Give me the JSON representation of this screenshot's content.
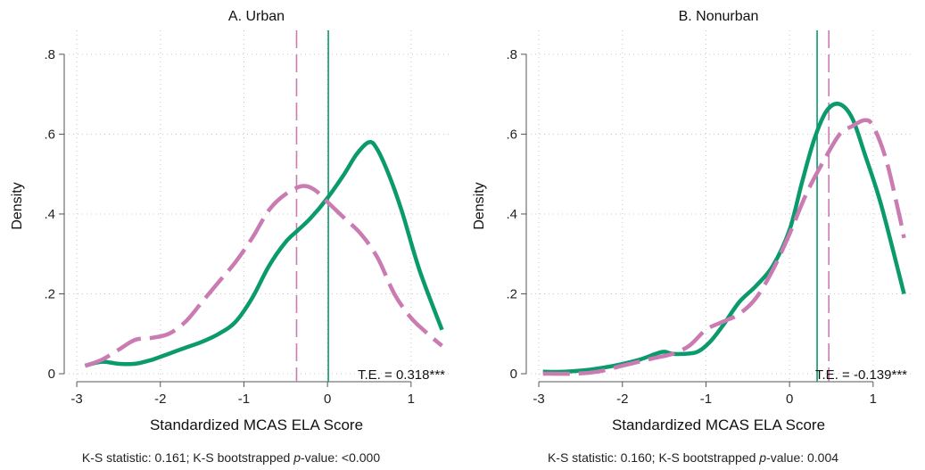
{
  "panels": [
    {
      "panel_title": "A. Urban",
      "ylabel": "Density",
      "xlabel": "Standardized MCAS ELA Score",
      "te_label": "T.E. = 0.318***",
      "ks": {
        "prefix": "K-S statistic: 0.161; K-S bootstrapped ",
        "pword": "p",
        "suffix": "-value: <0.000"
      }
    },
    {
      "panel_title": "B. Nonurban",
      "ylabel": "Density",
      "xlabel": "Standardized MCAS ELA Score",
      "te_label": "T.E. = -0.139***",
      "ks": {
        "prefix": "K-S statistic: 0.160; K-S bootstrapped ",
        "pword": "p",
        "suffix": "-value: 0.004"
      }
    }
  ],
  "colors": {
    "solid": "#0a9a6c",
    "dashed": "#c97bb2",
    "axis": "#555555",
    "grid": "#c8c8c8"
  },
  "chart_data": [
    {
      "type": "line",
      "title": "A. Urban",
      "xlabel": "Standardized MCAS ELA Score",
      "ylabel": "Density",
      "xlim": [
        -3.15,
        1.45
      ],
      "ylim": [
        -0.02,
        0.86
      ],
      "x_ticks": [
        -3,
        -2,
        -1,
        0,
        1
      ],
      "x_tick_labels": [
        "-3",
        "-2",
        "-1",
        "0",
        "1"
      ],
      "y_ticks": [
        0,
        0.2,
        0.4,
        0.6,
        0.8
      ],
      "y_tick_labels": [
        "0",
        ".2",
        ".4",
        ".6",
        ".8"
      ],
      "grid": true,
      "series": [
        {
          "style": "solid",
          "color": "#0a9a6c",
          "x": [
            -2.9,
            -2.7,
            -2.5,
            -2.3,
            -2.1,
            -1.9,
            -1.7,
            -1.5,
            -1.3,
            -1.1,
            -0.9,
            -0.7,
            -0.5,
            -0.35,
            -0.2,
            0.0,
            0.2,
            0.35,
            0.5,
            0.6,
            0.75,
            0.9,
            1.1,
            1.37
          ],
          "y": [
            0.02,
            0.03,
            0.025,
            0.025,
            0.035,
            0.05,
            0.065,
            0.08,
            0.1,
            0.13,
            0.19,
            0.27,
            0.33,
            0.36,
            0.39,
            0.44,
            0.5,
            0.55,
            0.58,
            0.56,
            0.49,
            0.4,
            0.26,
            0.11
          ]
        },
        {
          "style": "dashed",
          "color": "#c97bb2",
          "x": [
            -2.9,
            -2.7,
            -2.5,
            -2.3,
            -2.1,
            -1.9,
            -1.7,
            -1.5,
            -1.3,
            -1.1,
            -0.9,
            -0.7,
            -0.5,
            -0.3,
            -0.15,
            0.0,
            0.2,
            0.4,
            0.6,
            0.8,
            1.0,
            1.2,
            1.37
          ],
          "y": [
            0.02,
            0.035,
            0.06,
            0.085,
            0.09,
            0.1,
            0.13,
            0.18,
            0.23,
            0.28,
            0.34,
            0.41,
            0.45,
            0.47,
            0.46,
            0.43,
            0.39,
            0.35,
            0.29,
            0.2,
            0.14,
            0.1,
            0.07
          ]
        }
      ],
      "vlines": [
        {
          "x": -0.37,
          "style": "dashed",
          "color": "#c97bb2"
        },
        {
          "x": 0.01,
          "style": "solid",
          "color": "#0a9a6c"
        }
      ],
      "annotation": "T.E. = 0.318***"
    },
    {
      "type": "line",
      "title": "B. Nonurban",
      "xlabel": "Standardized MCAS ELA Score",
      "ylabel": "Density",
      "xlim": [
        -3.15,
        1.45
      ],
      "ylim": [
        -0.02,
        0.86
      ],
      "x_ticks": [
        -3,
        -2,
        -1,
        0,
        1
      ],
      "x_tick_labels": [
        "-3",
        "-2",
        "-1",
        "0",
        "1"
      ],
      "y_ticks": [
        0,
        0.2,
        0.4,
        0.6,
        0.8
      ],
      "y_tick_labels": [
        "0",
        ".2",
        ".4",
        ".6",
        ".8"
      ],
      "grid": true,
      "series": [
        {
          "style": "solid",
          "color": "#0a9a6c",
          "x": [
            -2.95,
            -2.7,
            -2.4,
            -2.1,
            -1.8,
            -1.6,
            -1.5,
            -1.4,
            -1.25,
            -1.1,
            -0.95,
            -0.8,
            -0.6,
            -0.4,
            -0.2,
            0.0,
            0.15,
            0.3,
            0.45,
            0.6,
            0.75,
            0.9,
            1.1,
            1.37
          ],
          "y": [
            0.005,
            0.005,
            0.01,
            0.02,
            0.035,
            0.05,
            0.055,
            0.05,
            0.05,
            0.055,
            0.08,
            0.12,
            0.18,
            0.22,
            0.27,
            0.36,
            0.48,
            0.59,
            0.66,
            0.675,
            0.64,
            0.55,
            0.42,
            0.2
          ]
        },
        {
          "style": "dashed",
          "color": "#c97bb2",
          "x": [
            -2.95,
            -2.6,
            -2.3,
            -2.0,
            -1.8,
            -1.6,
            -1.4,
            -1.2,
            -1.0,
            -0.8,
            -0.6,
            -0.4,
            -0.2,
            0.0,
            0.2,
            0.4,
            0.6,
            0.75,
            0.9,
            1.0,
            1.15,
            1.3,
            1.37
          ],
          "y": [
            0.0,
            0.0,
            0.005,
            0.02,
            0.03,
            0.04,
            0.05,
            0.07,
            0.11,
            0.13,
            0.15,
            0.19,
            0.26,
            0.35,
            0.45,
            0.53,
            0.6,
            0.62,
            0.635,
            0.62,
            0.54,
            0.41,
            0.34
          ]
        }
      ],
      "vlines": [
        {
          "x": 0.33,
          "style": "solid",
          "color": "#0a9a6c"
        },
        {
          "x": 0.47,
          "style": "dashed",
          "color": "#c97bb2"
        }
      ],
      "annotation": "T.E. = -0.139***"
    }
  ]
}
